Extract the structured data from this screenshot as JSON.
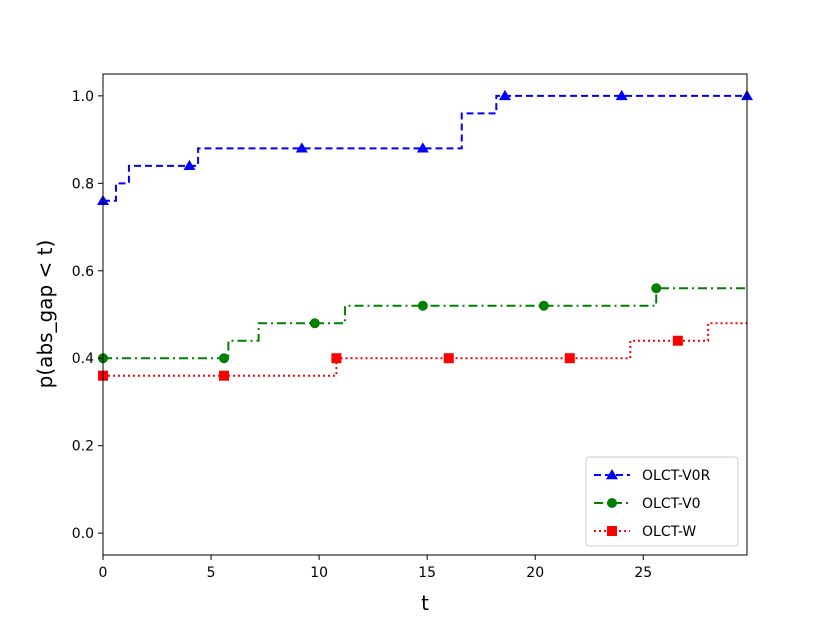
{
  "chart_data": {
    "type": "line",
    "title": "",
    "xlabel": "t",
    "ylabel": "p(abs_gap < t)",
    "xlim": [
      0,
      29.8
    ],
    "ylim": [
      -0.05,
      1.05
    ],
    "xticks": [
      0,
      5,
      10,
      15,
      20,
      25
    ],
    "yticks": [
      0.0,
      0.2,
      0.4,
      0.6,
      0.8,
      1.0
    ],
    "xtick_labels": [
      "0",
      "5",
      "10",
      "15",
      "20",
      "25"
    ],
    "ytick_labels": [
      "0.0",
      "0.2",
      "0.4",
      "0.6",
      "0.8",
      "1.0"
    ],
    "grid": false,
    "legend_position": "lower-right",
    "series": [
      {
        "name": "OLCT-V0R",
        "color": "#0000ff",
        "line_style": "dashed",
        "marker": "triangle",
        "steps": [
          [
            0,
            0.76
          ],
          [
            0.6,
            0.8
          ],
          [
            1.2,
            0.84
          ],
          [
            4.4,
            0.88
          ],
          [
            16.6,
            0.96
          ],
          [
            18.2,
            1.0
          ],
          [
            29.8,
            1.0
          ]
        ],
        "markers": [
          [
            0,
            0.76
          ],
          [
            4.0,
            0.84
          ],
          [
            9.2,
            0.88
          ],
          [
            14.8,
            0.88
          ],
          [
            18.6,
            1.0
          ],
          [
            24.0,
            1.0
          ],
          [
            29.8,
            1.0
          ]
        ]
      },
      {
        "name": "OLCT-V0",
        "color": "#008000",
        "line_style": "dashdot",
        "marker": "circle",
        "steps": [
          [
            0,
            0.4
          ],
          [
            5.8,
            0.44
          ],
          [
            7.2,
            0.48
          ],
          [
            11.2,
            0.52
          ],
          [
            25.6,
            0.56
          ],
          [
            29.8,
            0.56
          ]
        ],
        "markers": [
          [
            0,
            0.4
          ],
          [
            5.6,
            0.4
          ],
          [
            9.8,
            0.48
          ],
          [
            14.8,
            0.52
          ],
          [
            20.4,
            0.52
          ],
          [
            25.6,
            0.56
          ]
        ]
      },
      {
        "name": "OLCT-W",
        "color": "#ff0000",
        "line_style": "dotted",
        "marker": "square",
        "steps": [
          [
            0,
            0.36
          ],
          [
            10.8,
            0.4
          ],
          [
            24.4,
            0.44
          ],
          [
            28.0,
            0.48
          ],
          [
            29.8,
            0.48
          ]
        ],
        "markers": [
          [
            0,
            0.36
          ],
          [
            5.6,
            0.36
          ],
          [
            10.8,
            0.4
          ],
          [
            16.0,
            0.4
          ],
          [
            21.6,
            0.4
          ],
          [
            26.6,
            0.44
          ]
        ]
      }
    ]
  }
}
